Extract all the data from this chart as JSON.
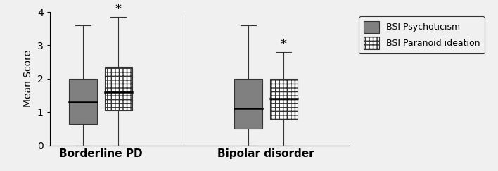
{
  "groups": [
    "Borderline PD",
    "Bipolar disorder"
  ],
  "series": [
    {
      "name": "BSI Psychoticism",
      "color": "#808080",
      "hatch": "",
      "boxes": [
        {
          "whislo": 0.0,
          "q1": 0.65,
          "med": 1.3,
          "q3": 2.0,
          "whishi": 3.6
        },
        {
          "whislo": 0.0,
          "q1": 0.5,
          "med": 1.1,
          "q3": 2.0,
          "whishi": 3.6
        }
      ],
      "sig": [
        false,
        false
      ]
    },
    {
      "name": "BSI Paranoid ideation",
      "color": "#ffffff",
      "hatch": "+++",
      "boxes": [
        {
          "whislo": 0.0,
          "q1": 1.05,
          "med": 1.6,
          "q3": 2.35,
          "whishi": 3.85
        },
        {
          "whislo": 0.0,
          "q1": 0.8,
          "med": 1.4,
          "q3": 2.0,
          "whishi": 2.8
        }
      ],
      "sig": [
        true,
        true
      ]
    }
  ],
  "ylim": [
    0,
    4
  ],
  "yticks": [
    0,
    1,
    2,
    3,
    4
  ],
  "ylabel": "Mean Score",
  "box_width": 0.22,
  "group_centers": [
    0.75,
    2.05
  ],
  "offsets": [
    -0.14,
    0.14
  ],
  "sig_label": "*",
  "sig_fontsize": 13,
  "legend_fontsize": 9,
  "axis_label_fontsize": 10,
  "tick_label_fontsize": 10,
  "group_label_fontsize": 11,
  "background_color": "#f0f0f0",
  "plot_bg_color": "#f0f0f0",
  "box_edge_color": "#333333",
  "median_color": "#000000",
  "whisker_color": "#333333",
  "cap_color": "#333333",
  "xlim": [
    0.35,
    2.7
  ]
}
